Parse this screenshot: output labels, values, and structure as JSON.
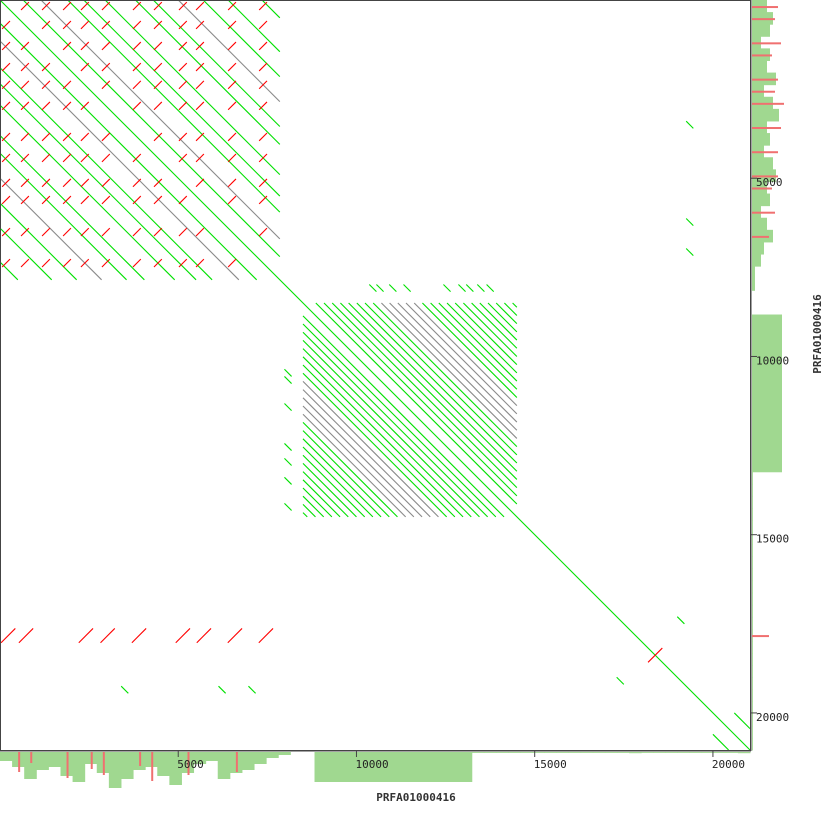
{
  "chart_data": {
    "type": "dotplot",
    "xlabel": "PRFA01000416",
    "ylabel": "PRFA01000416",
    "xlim": [
      0,
      21040
    ],
    "ylim": [
      0,
      21040
    ],
    "x_ticks": [
      5000,
      10000,
      15000,
      20000
    ],
    "y_ticks": [
      5000,
      10000,
      15000,
      20000
    ],
    "colors": {
      "forward": "#00e000",
      "reverse": "#ff0000",
      "weak": "#8a8a8a",
      "coverage": "#a0d890",
      "coverage_repeat": "#f07070",
      "frame": "#444444"
    },
    "main_diagonal": [
      0,
      21040
    ],
    "repeat_blocks": [
      {
        "start": 0,
        "end": 7850,
        "offsets": [
          -7350,
          -6400,
          -5700,
          -5000,
          -4300,
          -3800,
          -2950,
          -2350,
          -1900,
          -1150,
          -650,
          650,
          1150,
          1900,
          2350,
          2950,
          3800,
          4300,
          5000,
          5700,
          6400,
          7350
        ],
        "weak_offsets": [
          -5000,
          5000,
          -1150,
          1150
        ],
        "reverse_positions": [
          170,
          700,
          1290,
          1880,
          2380,
          2970,
          3840,
          4430,
          5130,
          5610,
          6510,
          7380
        ]
      },
      {
        "start": 8500,
        "end": 14500,
        "offsets": [
          -5880,
          -5650,
          -5420,
          -5190,
          -4960,
          -4730,
          -4500,
          -4270,
          -4040,
          -3810,
          -3580,
          -3350,
          -3120,
          -2890,
          -2660,
          -2430,
          -2200,
          -1970,
          -1740,
          -1510,
          -1280,
          -1050,
          -820,
          -590,
          -360,
          360,
          590,
          820,
          1050,
          1280,
          1510,
          1740,
          1970,
          2200,
          2430,
          2660,
          2890,
          3120,
          3350,
          3580,
          3810,
          4040,
          4270,
          4500,
          4730,
          4960,
          5190,
          5420,
          5650,
          5880
        ],
        "weak_offsets": [
          -3120,
          -2890,
          -2660,
          -2430,
          -2200,
          2200,
          2430,
          2660,
          2890,
          3120
        ]
      }
    ],
    "extra_forward": [
      [
        10460,
        8080
      ],
      [
        10660,
        8080
      ],
      [
        11020,
        8080
      ],
      [
        11420,
        8080
      ],
      [
        12540,
        8080
      ],
      [
        12960,
        8080
      ],
      [
        13180,
        8080
      ],
      [
        13490,
        8080
      ],
      [
        13750,
        8080
      ],
      [
        8080,
        10460
      ],
      [
        8080,
        10660
      ],
      [
        8080,
        11420
      ],
      [
        8080,
        12540
      ],
      [
        8080,
        12960
      ],
      [
        8080,
        13490
      ],
      [
        8080,
        14220
      ],
      [
        3500,
        19350
      ],
      [
        6230,
        19350
      ],
      [
        7070,
        19350
      ],
      [
        19350,
        3500
      ],
      [
        19350,
        6230
      ],
      [
        19350,
        7070
      ],
      [
        19100,
        17400
      ],
      [
        17400,
        19100
      ]
    ],
    "extra_reverse": [
      [
        230,
        17830
      ],
      [
        730,
        17830
      ],
      [
        2410,
        17830
      ],
      [
        3020,
        17830
      ],
      [
        3900,
        17830
      ],
      [
        5130,
        17830
      ],
      [
        5720,
        17830
      ],
      [
        6590,
        17830
      ],
      [
        7460,
        17830
      ],
      [
        18380,
        18380
      ]
    ],
    "tail_forward_offsets": [
      -600,
      600
    ],
    "coverage_x": [
      3,
      5,
      9,
      6,
      5,
      8,
      10,
      4,
      7,
      12,
      9,
      6,
      5,
      8,
      11,
      7,
      4,
      3,
      9,
      7,
      6,
      4,
      2,
      1,
      0,
      0,
      10,
      10,
      10,
      10,
      10,
      10,
      10,
      10,
      10,
      10,
      10,
      10,
      10,
      0.3,
      0.3,
      0.3,
      0.3,
      0.3,
      0.3,
      0.3,
      0.3,
      0.3,
      0.3,
      0.3,
      0.3,
      0.3,
      0.4,
      0.3,
      0.3,
      0.3,
      0.3,
      0.3,
      0.3,
      0.3,
      0.3,
      0.4
    ],
    "coverage_x_repeat": [
      0,
      4,
      1,
      0,
      0,
      6,
      0,
      3,
      5,
      0,
      0,
      2,
      7,
      0,
      0,
      5,
      0,
      0,
      0,
      4,
      0,
      0,
      0,
      0,
      0,
      0,
      0,
      0,
      0,
      0,
      0,
      0,
      0,
      0,
      0,
      0,
      0,
      0,
      0,
      0,
      0,
      0,
      0,
      0,
      0,
      0,
      0,
      0,
      0,
      0,
      0,
      0,
      0,
      0,
      0,
      0,
      0,
      0,
      0,
      0,
      0,
      0
    ],
    "coverage_y": [
      5,
      7,
      6,
      3,
      6,
      5,
      8,
      4,
      7,
      9,
      5,
      6,
      4,
      7,
      8,
      5,
      6,
      3,
      5,
      7,
      4,
      3,
      1,
      1,
      0,
      0,
      10,
      10,
      10,
      10,
      10,
      10,
      10,
      10,
      10,
      10,
      10,
      10,
      10,
      0.3,
      0.3,
      0.3,
      0.3,
      0.3,
      0.3,
      0.3,
      0.3,
      0.3,
      0.3,
      0.3,
      0.3,
      0.3,
      0.3,
      0.3,
      0.3,
      0.3,
      0.3,
      0.3,
      0.3,
      0.3,
      0.3,
      0.3
    ],
    "coverage_y_repeat": [
      6,
      5,
      0,
      7,
      4,
      0,
      6,
      5,
      8,
      0,
      7,
      0,
      6,
      0,
      6,
      4,
      0,
      5,
      0,
      3,
      0,
      0,
      0,
      0,
      0,
      0,
      0,
      0,
      0,
      0,
      0,
      0,
      0,
      0,
      0,
      0,
      0,
      0,
      0,
      0,
      0,
      0,
      0,
      0,
      0,
      0,
      0,
      0,
      0,
      0,
      0,
      0,
      3,
      0,
      0,
      0,
      0,
      0,
      0,
      0,
      0,
      0
    ]
  }
}
